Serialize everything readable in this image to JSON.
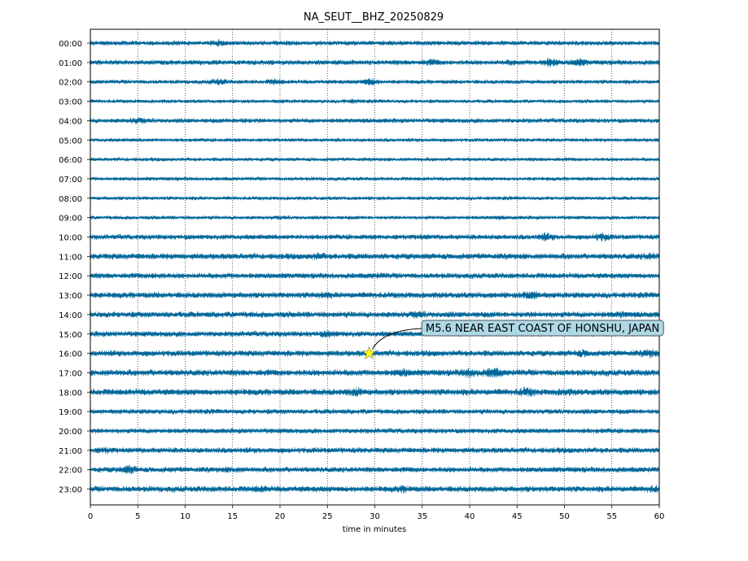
{
  "chart_data": {
    "type": "line",
    "title": "NA_SEUT__BHZ_20250829",
    "xlabel": "time in minutes",
    "ylabel": "",
    "xlim": [
      0,
      60
    ],
    "xticks": [
      "0",
      "5",
      "10",
      "15",
      "20",
      "25",
      "30",
      "35",
      "40",
      "45",
      "50",
      "55",
      "60"
    ],
    "grid": "vertical dotted at each 5 minutes",
    "trace_color": "#00679A",
    "rows": [
      {
        "label": "00:00",
        "amplitude": 0.55,
        "bursts": [
          [
            13.5,
            1.6
          ],
          [
            20.5,
            1.2
          ],
          [
            42.0,
            1.0
          ]
        ]
      },
      {
        "label": "01:00",
        "amplitude": 0.6,
        "bursts": [
          [
            36.0,
            1.5
          ],
          [
            48.5,
            2.0
          ],
          [
            51.5,
            1.8
          ],
          [
            44.5,
            1.3
          ]
        ]
      },
      {
        "label": "02:00",
        "amplitude": 0.5,
        "bursts": [
          [
            13.5,
            1.8
          ],
          [
            19.5,
            1.6
          ],
          [
            29.5,
            2.2
          ]
        ]
      },
      {
        "label": "03:00",
        "amplitude": 0.45,
        "bursts": [
          [
            20.0,
            1.2
          ],
          [
            27.5,
            1.4
          ]
        ]
      },
      {
        "label": "04:00",
        "amplitude": 0.55,
        "bursts": [
          [
            5.0,
            1.6
          ],
          [
            16.0,
            1.3
          ]
        ]
      },
      {
        "label": "05:00",
        "amplitude": 0.45,
        "bursts": []
      },
      {
        "label": "06:00",
        "amplitude": 0.45,
        "bursts": []
      },
      {
        "label": "07:00",
        "amplitude": 0.45,
        "bursts": []
      },
      {
        "label": "08:00",
        "amplitude": 0.45,
        "bursts": []
      },
      {
        "label": "09:00",
        "amplitude": 0.45,
        "bursts": [
          [
            20.0,
            1.2
          ],
          [
            43.0,
            1.2
          ]
        ]
      },
      {
        "label": "10:00",
        "amplitude": 0.6,
        "bursts": [
          [
            48.0,
            1.8
          ],
          [
            54.0,
            1.9
          ],
          [
            35.0,
            1.2
          ]
        ]
      },
      {
        "label": "11:00",
        "amplitude": 0.7,
        "bursts": [
          [
            24.0,
            1.4
          ],
          [
            59.0,
            1.4
          ]
        ]
      },
      {
        "label": "12:00",
        "amplitude": 0.65,
        "bursts": [
          [
            7.0,
            1.3
          ],
          [
            30.5,
            1.2
          ]
        ]
      },
      {
        "label": "13:00",
        "amplitude": 0.7,
        "bursts": [
          [
            46.5,
            1.9
          ],
          [
            24.5,
            1.3
          ]
        ]
      },
      {
        "label": "14:00",
        "amplitude": 0.7,
        "bursts": [
          [
            34.5,
            1.4
          ],
          [
            56.0,
            1.3
          ]
        ]
      },
      {
        "label": "15:00",
        "amplitude": 0.65,
        "bursts": [
          [
            25.0,
            1.5
          ]
        ]
      },
      {
        "label": "16:00",
        "amplitude": 0.7,
        "bursts": [
          [
            52.0,
            1.5
          ],
          [
            59.0,
            1.6
          ]
        ]
      },
      {
        "label": "17:00",
        "amplitude": 0.75,
        "bursts": [
          [
            33.0,
            1.5
          ],
          [
            40.0,
            1.7
          ],
          [
            42.5,
            1.9
          ]
        ]
      },
      {
        "label": "18:00",
        "amplitude": 0.75,
        "bursts": [
          [
            28.0,
            1.6
          ],
          [
            46.0,
            1.7
          ],
          [
            50.0,
            1.3
          ]
        ]
      },
      {
        "label": "19:00",
        "amplitude": 0.6,
        "bursts": []
      },
      {
        "label": "20:00",
        "amplitude": 0.6,
        "bursts": []
      },
      {
        "label": "21:00",
        "amplitude": 0.65,
        "bursts": [
          [
            1.5,
            1.3
          ]
        ]
      },
      {
        "label": "22:00",
        "amplitude": 0.65,
        "bursts": [
          [
            4.0,
            1.9
          ],
          [
            15.0,
            1.3
          ]
        ]
      },
      {
        "label": "23:00",
        "amplitude": 0.7,
        "bursts": [
          [
            18.0,
            1.4
          ],
          [
            33.0,
            1.4
          ],
          [
            59.5,
            1.4
          ]
        ]
      }
    ],
    "annotation": {
      "text": "M5.6 NEAR EAST COAST OF HONSHU, JAPAN",
      "row": "16:00",
      "minute": 29.4,
      "marker": "star",
      "marker_color": "#FFFF00",
      "box_color": "#ADD8E6"
    }
  }
}
